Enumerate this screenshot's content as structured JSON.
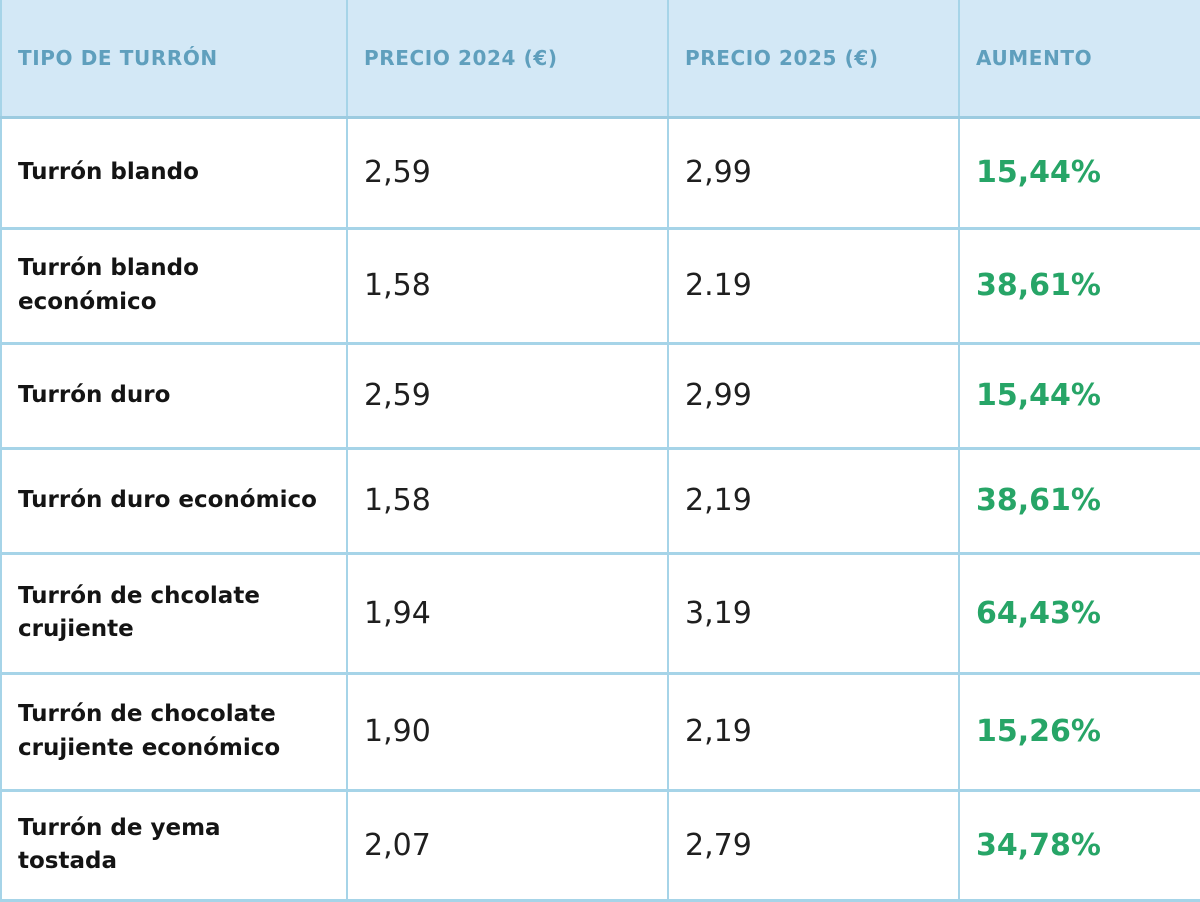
{
  "table": {
    "headers": {
      "type": "TIPO DE TURRÓN",
      "price2024": "PRECIO 2024 (€)",
      "price2025": "PRECIO 2025 (€)",
      "increase": "AUMENTO"
    },
    "rows": [
      {
        "name": "Turrón blando",
        "price2024": "2,59",
        "price2025": "2,99",
        "increase": "15,44%"
      },
      {
        "name": "Turrón blando económico",
        "price2024": "1,58",
        "price2025": "2.19",
        "increase": "38,61%"
      },
      {
        "name": "Turrón duro",
        "price2024": "2,59",
        "price2025": "2,99",
        "increase": "15,44%"
      },
      {
        "name": "Turrón duro económico",
        "price2024": "1,58",
        "price2025": "2,19",
        "increase": "38,61%"
      },
      {
        "name": "Turrón de chcolate crujiente",
        "price2024": "1,94",
        "price2025": "3,19",
        "increase": "64,43%"
      },
      {
        "name": "Turrón de chocolate crujiente económico",
        "price2024": "1,90",
        "price2025": "2,19",
        "increase": "15,26%"
      },
      {
        "name": "Turrón de yema tostada",
        "price2024": "2,07",
        "price2025": "2,79",
        "increase": "34,78%"
      }
    ]
  },
  "colors": {
    "header_background": "#d3e8f6",
    "header_text": "#5f9fbd",
    "border": "#a6d4e8",
    "body_text": "#1f1f1f",
    "increase_green": "#27a567",
    "row_background": "#ffffff"
  },
  "chart_data": {
    "type": "table",
    "title": "Comparativa de precios de turrón 2024 vs 2025",
    "columns": [
      "TIPO DE TURRÓN",
      "PRECIO 2024 (€)",
      "PRECIO 2025 (€)",
      "AUMENTO"
    ],
    "rows": [
      [
        "Turrón blando",
        2.59,
        2.99,
        "15,44%"
      ],
      [
        "Turrón blando económico",
        1.58,
        2.19,
        "38,61%"
      ],
      [
        "Turrón duro",
        2.59,
        2.99,
        "15,44%"
      ],
      [
        "Turrón duro económico",
        1.58,
        2.19,
        "38,61%"
      ],
      [
        "Turrón de chcolate crujiente",
        1.94,
        3.19,
        "64,43%"
      ],
      [
        "Turrón de chocolate crujiente económico",
        1.9,
        2.19,
        "15,26%"
      ],
      [
        "Turrón de yema tostada",
        2.07,
        2.79,
        "34,78%"
      ]
    ],
    "notes": "Increase percentages shown bold green; header row light blue with teal uppercase labels"
  }
}
